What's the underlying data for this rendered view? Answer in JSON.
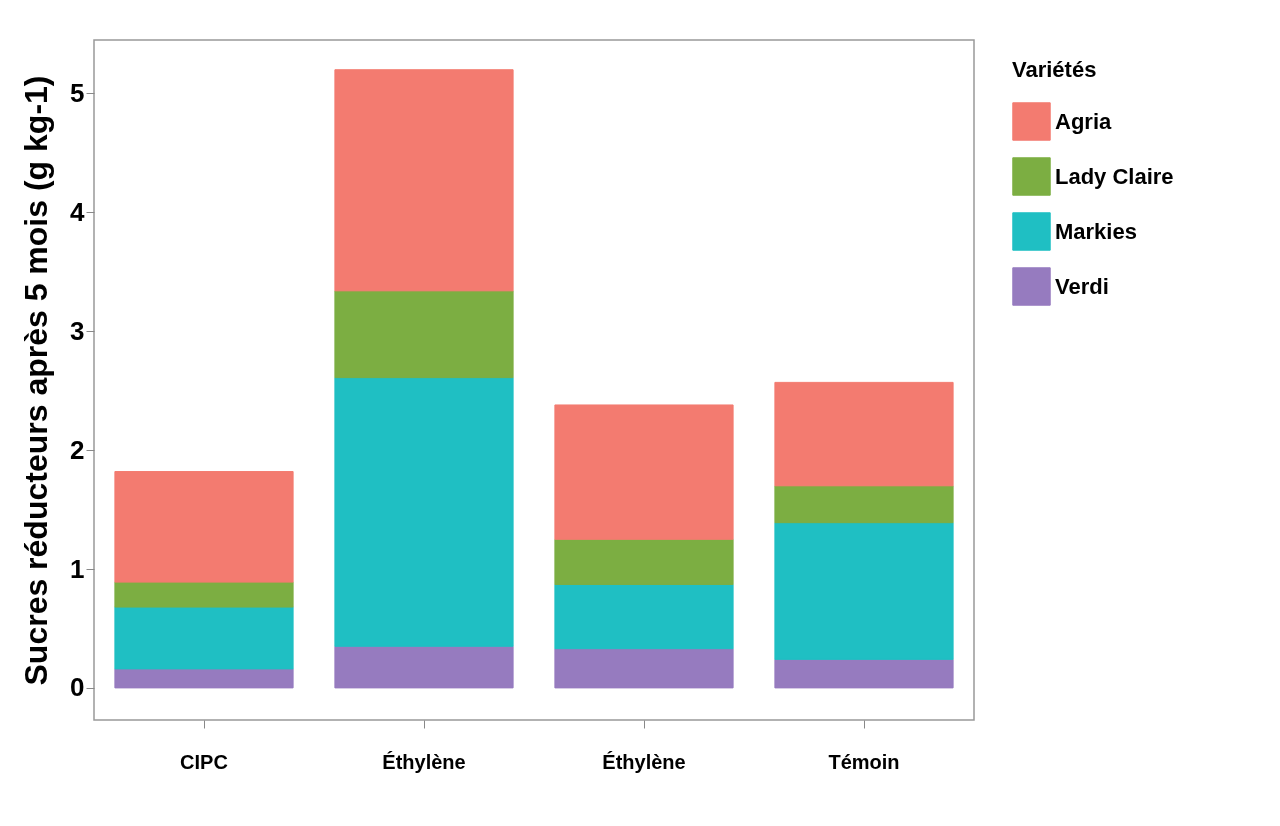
{
  "chart_data": {
    "type": "bar",
    "stacked": true,
    "ylabel": "Sucres réducteurs après 5 mois (g kg-1)",
    "legend_title": "Variétés",
    "categories": [
      "CIPC",
      "Éthylène",
      "Éthylène",
      "Témoin"
    ],
    "series": [
      {
        "name": "Verdi",
        "color": "#967bbf",
        "values": [
          0.16,
          0.35,
          0.33,
          0.24
        ]
      },
      {
        "name": "Markies",
        "color": "#1fbfc3",
        "values": [
          0.52,
          2.26,
          0.54,
          1.15
        ]
      },
      {
        "name": "Lady Claire",
        "color": "#7cae42",
        "values": [
          0.21,
          0.73,
          0.38,
          0.31
        ]
      },
      {
        "name": "Agria",
        "color": "#f37b70",
        "values": [
          0.93,
          1.86,
          1.13,
          0.87
        ]
      }
    ],
    "ylim": [
      -0.27,
      5.45
    ],
    "yticks": [
      0,
      1,
      2,
      3,
      4,
      5
    ],
    "legend": "right"
  }
}
